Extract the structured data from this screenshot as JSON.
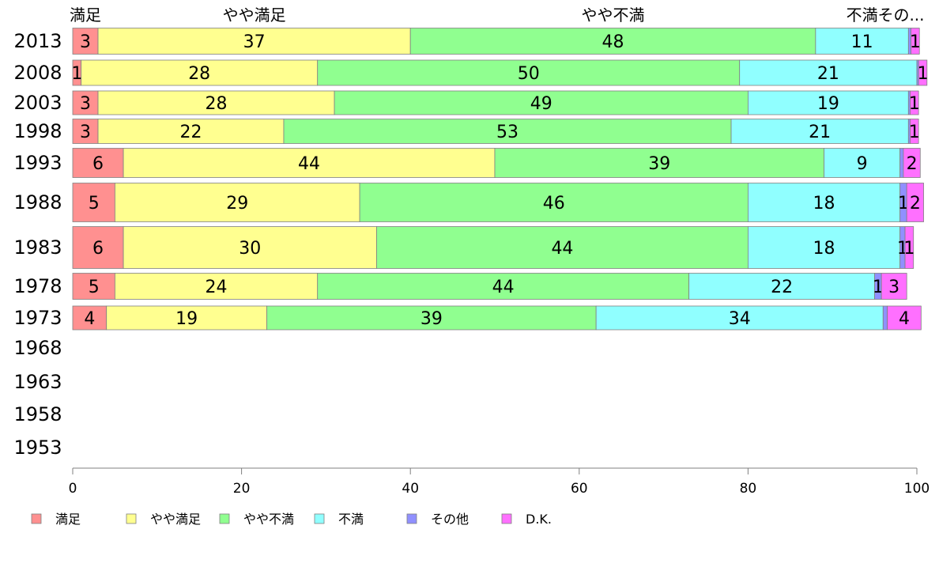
{
  "chart_data": {
    "type": "bar",
    "orientation": "horizontal",
    "stacked": true,
    "title": "",
    "xlabel": "",
    "ylabel": "",
    "xlim": [
      0,
      100
    ],
    "xticks": [
      0,
      20,
      40,
      60,
      80,
      100
    ],
    "grid": false,
    "legend_position": "bottom",
    "categories": [
      "2013",
      "2008",
      "2003",
      "1998",
      "1993",
      "1988",
      "1983",
      "1978",
      "1973",
      "1968",
      "1963",
      "1958",
      "1953"
    ],
    "top_labels": [
      "満足",
      "やや満足",
      "やや不満",
      "不満",
      "その..."
    ],
    "series": [
      {
        "name": "満足",
        "color": "#ff9090",
        "values": [
          3,
          1,
          3,
          3,
          6,
          5,
          6,
          5,
          4,
          null,
          null,
          null,
          null
        ]
      },
      {
        "name": "やや満足",
        "color": "#ffff90",
        "values": [
          37,
          28,
          28,
          22,
          44,
          29,
          30,
          24,
          19,
          null,
          null,
          null,
          null
        ]
      },
      {
        "name": "やや不満",
        "color": "#90ff90",
        "values": [
          48,
          50,
          49,
          53,
          39,
          46,
          44,
          44,
          39,
          null,
          null,
          null,
          null
        ]
      },
      {
        "name": "不満",
        "color": "#90ffff",
        "values": [
          11,
          21,
          19,
          21,
          9,
          18,
          18,
          22,
          34,
          null,
          null,
          null,
          null
        ]
      },
      {
        "name": "その他",
        "color": "#9090ff",
        "values": [
          0.3,
          0.2,
          0.2,
          0.2,
          0.4,
          0.8,
          0.6,
          0.8,
          0.5,
          null,
          null,
          null,
          null
        ]
      },
      {
        "name": "D.K.",
        "color": "#ff70ff",
        "values": [
          1,
          1,
          1,
          1,
          2,
          2,
          1,
          3,
          4,
          null,
          null,
          null,
          null
        ]
      }
    ],
    "data_labels": [
      [
        "3",
        "37",
        "48",
        "11",
        "",
        "1"
      ],
      [
        "1",
        "28",
        "50",
        "21",
        "",
        "1"
      ],
      [
        "3",
        "28",
        "49",
        "19",
        "",
        "1"
      ],
      [
        "3",
        "22",
        "53",
        "21",
        "",
        "1"
      ],
      [
        "6",
        "44",
        "39",
        "9",
        "",
        "2"
      ],
      [
        "5",
        "29",
        "46",
        "18",
        "1",
        "2"
      ],
      [
        "6",
        "30",
        "44",
        "18",
        "1",
        "1"
      ],
      [
        "5",
        "24",
        "44",
        "22",
        "1",
        "3"
      ],
      [
        "4",
        "19",
        "39",
        "34",
        "",
        "4"
      ]
    ]
  }
}
